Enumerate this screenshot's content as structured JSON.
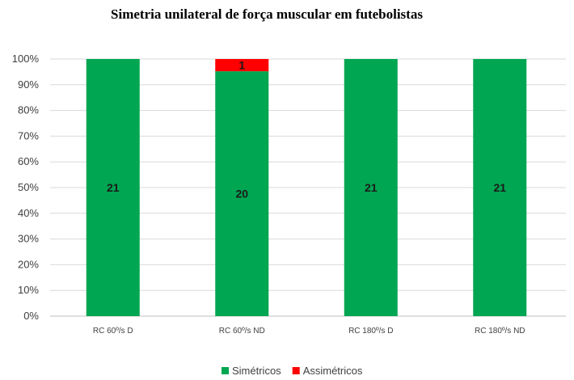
{
  "chart_data": {
    "type": "bar",
    "stacked": "percent",
    "title": "Simetria unilateral de força muscular em futebolistas",
    "categories": [
      "RC 60º/s D",
      "RC 60º/s ND",
      "RC 180º/s D",
      "RC 180º/s ND"
    ],
    "series": [
      {
        "name": "Simétricos",
        "color": "#00a651",
        "values": [
          21,
          20,
          21,
          21
        ]
      },
      {
        "name": "Assimétricos",
        "color": "#ff0000",
        "values": [
          0,
          1,
          0,
          0
        ]
      }
    ],
    "y_ticks": [
      "0%",
      "10%",
      "20%",
      "30%",
      "40%",
      "50%",
      "60%",
      "70%",
      "80%",
      "90%",
      "100%"
    ],
    "ylim": [
      0,
      100
    ],
    "grid": true,
    "legend": "bottom"
  }
}
